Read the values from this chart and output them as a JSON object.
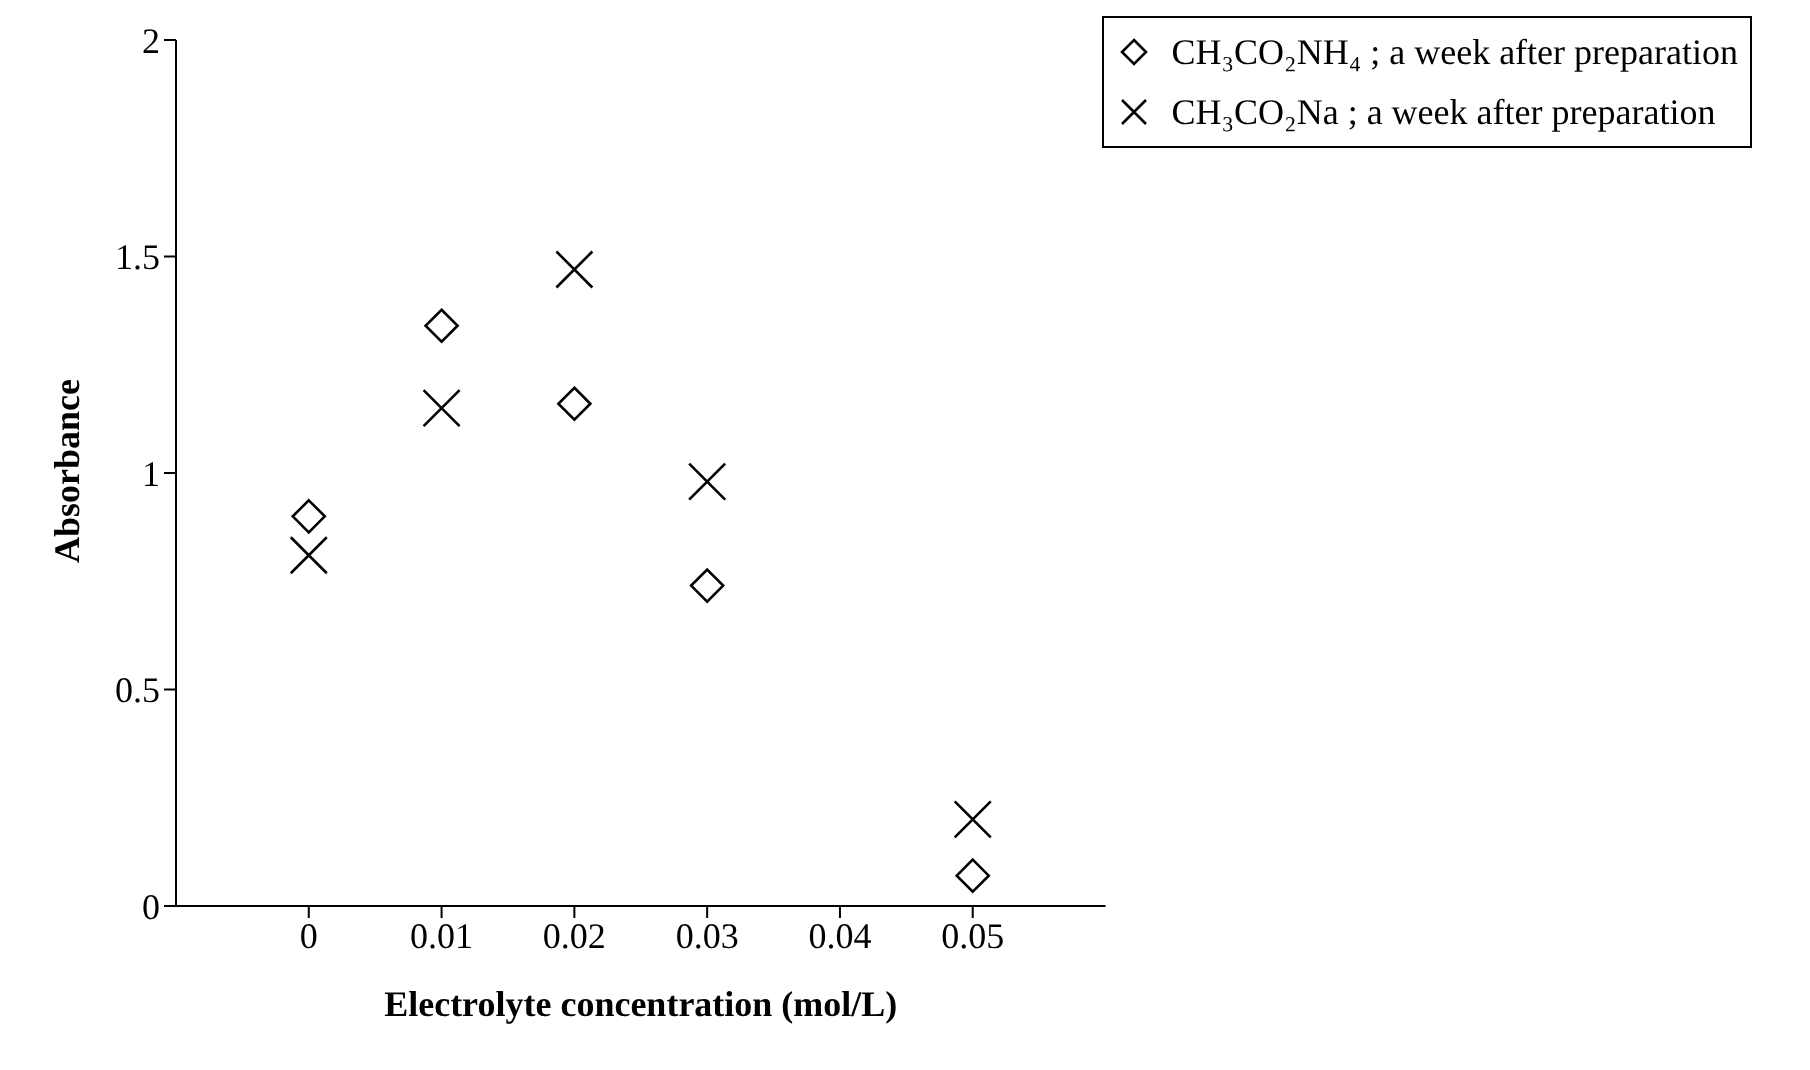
{
  "chart_data": {
    "type": "scatter",
    "xlabel": "Electrolyte concentration (mol/L)",
    "ylabel": "Absorbance",
    "x": [
      0,
      0.01,
      0.02,
      0.03,
      0.05
    ],
    "series": [
      {
        "name": "CH₃CO₂NH₄ ; a week after preparation",
        "color": "#000000",
        "marker": "diamond",
        "values": [
          0.9,
          1.34,
          1.16,
          0.74,
          0.07
        ]
      },
      {
        "name": "CH₃CO₂Na ; a week after preparation",
        "color": "#000000",
        "marker": "cross",
        "values": [
          0.81,
          1.15,
          1.47,
          0.98,
          0.2
        ]
      }
    ],
    "xlim": [
      -0.01,
      0.06
    ],
    "xticks": [
      0,
      0.01,
      0.02,
      0.03,
      0.04,
      0.05
    ],
    "ylim": [
      0,
      2
    ],
    "yticks": [
      0,
      0.5,
      1,
      1.5,
      2
    ],
    "grid": false,
    "legend": "top right"
  }
}
